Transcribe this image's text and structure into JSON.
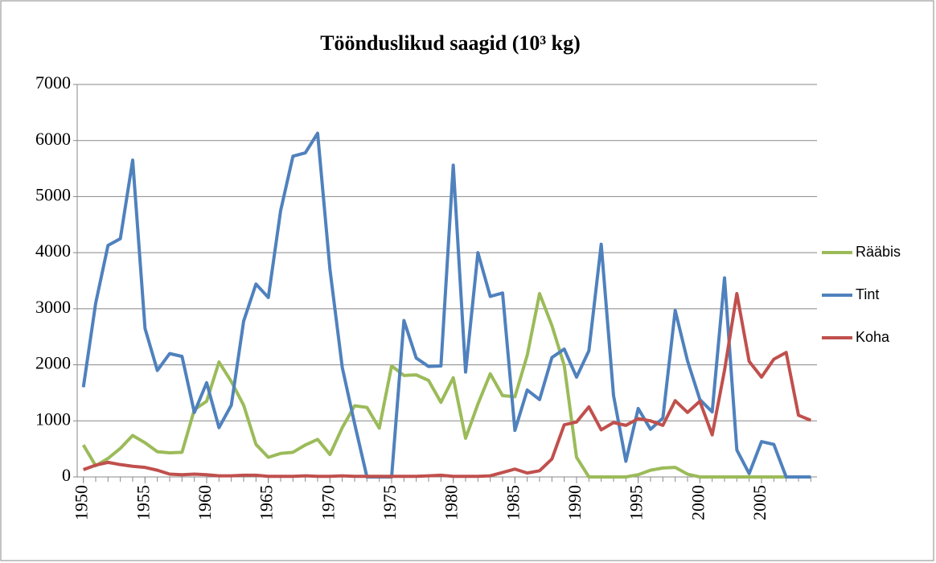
{
  "chart_data": {
    "type": "line",
    "title": "Töönduslikud saagid (10³ kg)",
    "x": [
      1950,
      1951,
      1952,
      1953,
      1954,
      1955,
      1956,
      1957,
      1958,
      1959,
      1960,
      1961,
      1962,
      1963,
      1964,
      1965,
      1966,
      1967,
      1968,
      1969,
      1970,
      1971,
      1972,
      1973,
      1974,
      1975,
      1976,
      1977,
      1978,
      1979,
      1980,
      1981,
      1982,
      1983,
      1984,
      1985,
      1986,
      1987,
      1988,
      1989,
      1990,
      1991,
      1992,
      1993,
      1994,
      1995,
      1996,
      1997,
      1998,
      1999,
      2000,
      2001,
      2002,
      2003,
      2004,
      2005,
      2006,
      2007,
      2008,
      2009
    ],
    "series": [
      {
        "name": "Rääbis",
        "color": "#9bbb59",
        "values": [
          570,
          200,
          330,
          510,
          740,
          610,
          450,
          430,
          440,
          1200,
          1350,
          2050,
          1700,
          1280,
          580,
          350,
          420,
          440,
          570,
          670,
          400,
          880,
          1270,
          1240,
          870,
          1980,
          1810,
          1820,
          1720,
          1330,
          1770,
          690,
          1300,
          1840,
          1450,
          1430,
          2170,
          3270,
          2700,
          1990,
          350,
          0,
          0,
          0,
          0,
          40,
          120,
          160,
          170,
          50,
          0,
          0,
          0,
          0,
          0,
          0,
          0,
          0,
          null,
          null
        ]
      },
      {
        "name": "Tint",
        "color": "#4f81bd",
        "values": [
          1600,
          3100,
          4130,
          4250,
          5650,
          2650,
          1900,
          2200,
          2150,
          1150,
          1680,
          880,
          1280,
          2780,
          3440,
          3200,
          4750,
          5720,
          5780,
          6130,
          3700,
          1950,
          950,
          0,
          0,
          0,
          2790,
          2120,
          1970,
          1980,
          5560,
          1870,
          4000,
          3220,
          3280,
          830,
          1550,
          1380,
          2130,
          2280,
          1780,
          2250,
          4150,
          1450,
          280,
          1220,
          850,
          1050,
          2970,
          2070,
          1380,
          1160,
          3550,
          480,
          60,
          630,
          580,
          0,
          0,
          0
        ]
      },
      {
        "name": "Koha",
        "color": "#c0504d",
        "values": [
          130,
          210,
          260,
          220,
          190,
          170,
          120,
          50,
          40,
          50,
          40,
          20,
          20,
          30,
          30,
          10,
          10,
          10,
          20,
          10,
          10,
          20,
          10,
          10,
          10,
          10,
          10,
          10,
          20,
          30,
          10,
          10,
          10,
          20,
          80,
          140,
          70,
          110,
          320,
          930,
          980,
          1250,
          840,
          970,
          920,
          1040,
          1000,
          920,
          1360,
          1150,
          1350,
          750,
          1900,
          3270,
          2060,
          1780,
          2100,
          2220,
          1100,
          1010
        ]
      }
    ],
    "xlim": [
      1949.5,
      2009.5
    ],
    "xticks": [
      1950,
      1955,
      1960,
      1965,
      1970,
      1975,
      1980,
      1985,
      1990,
      1995,
      2000,
      2005
    ],
    "ylim": [
      0,
      7000
    ],
    "yticks": [
      0,
      1000,
      2000,
      3000,
      4000,
      5000,
      6000,
      7000
    ],
    "grid": true,
    "legend": "right"
  }
}
